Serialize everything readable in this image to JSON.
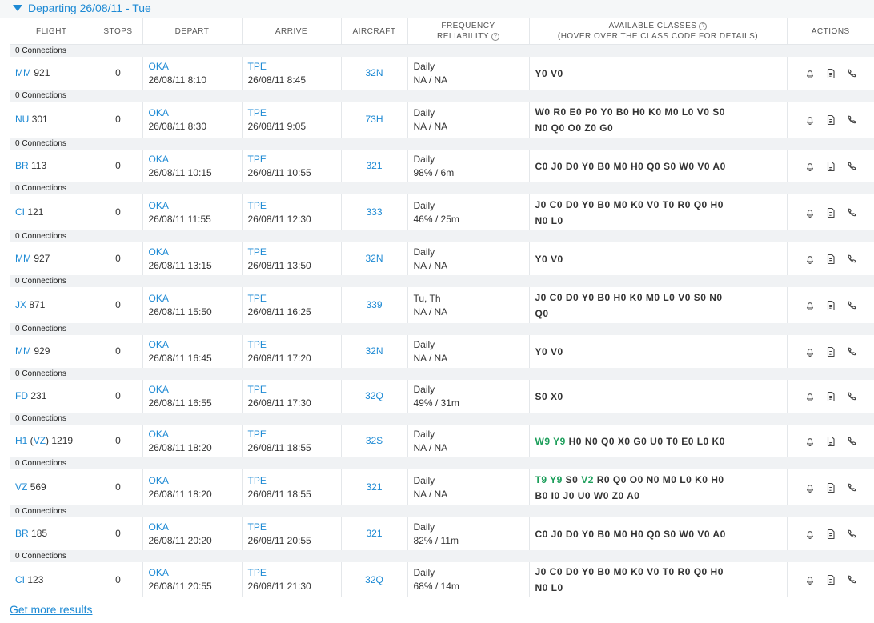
{
  "header": {
    "title": "Departing 26/08/11 - Tue"
  },
  "columns": {
    "flight": "FLIGHT",
    "stops": "STOPS",
    "depart": "DEPART",
    "arrive": "ARRIVE",
    "aircraft": "AIRCRAFT",
    "freq_line1": "FREQUENCY",
    "freq_line2": "RELIABILITY",
    "classes_line1": "AVAILABLE CLASSES",
    "classes_line2": "(HOVER OVER THE CLASS CODE FOR DETAILS)",
    "actions": "ACTIONS"
  },
  "flights": [
    {
      "connections": "0 Connections",
      "airline": "MM",
      "operator": "",
      "number": "921",
      "stops": "0",
      "dep_code": "OKA",
      "dep_time": "26/08/11 8:10",
      "arr_code": "TPE",
      "arr_time": "26/08/11 8:45",
      "aircraft": "32N",
      "frequency": "Daily",
      "reliability": "NA / NA",
      "classes_line1_hl": "",
      "classes_line1": "Y0 V0",
      "classes_line2": ""
    },
    {
      "connections": "0 Connections",
      "airline": "NU",
      "operator": "",
      "number": "301",
      "stops": "0",
      "dep_code": "OKA",
      "dep_time": "26/08/11 8:30",
      "arr_code": "TPE",
      "arr_time": "26/08/11 9:05",
      "aircraft": "73H",
      "frequency": "Daily",
      "reliability": "NA / NA",
      "classes_line1_hl": "",
      "classes_line1": "W0 R0 E0 P0 Y0 B0 H0 K0 M0 L0 V0 S0",
      "classes_line2": "N0 Q0 O0 Z0 G0"
    },
    {
      "connections": "0 Connections",
      "airline": "BR",
      "operator": "",
      "number": "113",
      "stops": "0",
      "dep_code": "OKA",
      "dep_time": "26/08/11 10:15",
      "arr_code": "TPE",
      "arr_time": "26/08/11 10:55",
      "aircraft": "321",
      "frequency": "Daily",
      "reliability": "98% / 6m",
      "classes_line1_hl": "",
      "classes_line1": "C0 J0 D0 Y0 B0 M0 H0 Q0 S0 W0 V0 A0",
      "classes_line2": ""
    },
    {
      "connections": "0 Connections",
      "airline": "CI",
      "operator": "",
      "number": "121",
      "stops": "0",
      "dep_code": "OKA",
      "dep_time": "26/08/11 11:55",
      "arr_code": "TPE",
      "arr_time": "26/08/11 12:30",
      "aircraft": "333",
      "frequency": "Daily",
      "reliability": "46% / 25m",
      "classes_line1_hl": "",
      "classes_line1": "J0 C0 D0 Y0 B0 M0 K0 V0 T0 R0 Q0 H0",
      "classes_line2": "N0 L0"
    },
    {
      "connections": "0 Connections",
      "airline": "MM",
      "operator": "",
      "number": "927",
      "stops": "0",
      "dep_code": "OKA",
      "dep_time": "26/08/11 13:15",
      "arr_code": "TPE",
      "arr_time": "26/08/11 13:50",
      "aircraft": "32N",
      "frequency": "Daily",
      "reliability": "NA / NA",
      "classes_line1_hl": "",
      "classes_line1": "Y0 V0",
      "classes_line2": ""
    },
    {
      "connections": "0 Connections",
      "airline": "JX",
      "operator": "",
      "number": "871",
      "stops": "0",
      "dep_code": "OKA",
      "dep_time": "26/08/11 15:50",
      "arr_code": "TPE",
      "arr_time": "26/08/11 16:25",
      "aircraft": "339",
      "frequency": "Tu, Th",
      "reliability": "NA / NA",
      "classes_line1_hl": "",
      "classes_line1": "J0 C0 D0 Y0 B0 H0 K0 M0 L0 V0 S0 N0",
      "classes_line2": "Q0"
    },
    {
      "connections": "0 Connections",
      "airline": "MM",
      "operator": "",
      "number": "929",
      "stops": "0",
      "dep_code": "OKA",
      "dep_time": "26/08/11 16:45",
      "arr_code": "TPE",
      "arr_time": "26/08/11 17:20",
      "aircraft": "32N",
      "frequency": "Daily",
      "reliability": "NA / NA",
      "classes_line1_hl": "",
      "classes_line1": "Y0 V0",
      "classes_line2": ""
    },
    {
      "connections": "0 Connections",
      "airline": "FD",
      "operator": "",
      "number": "231",
      "stops": "0",
      "dep_code": "OKA",
      "dep_time": "26/08/11 16:55",
      "arr_code": "TPE",
      "arr_time": "26/08/11 17:30",
      "aircraft": "32Q",
      "frequency": "Daily",
      "reliability": "49% / 31m",
      "classes_line1_hl": "",
      "classes_line1": "S0 X0",
      "classes_line2": ""
    },
    {
      "connections": "0 Connections",
      "airline": "H1",
      "operator": "VZ",
      "number": "1219",
      "stops": "0",
      "dep_code": "OKA",
      "dep_time": "26/08/11 18:20",
      "arr_code": "TPE",
      "arr_time": "26/08/11 18:55",
      "aircraft": "32S",
      "frequency": "Daily",
      "reliability": "NA / NA",
      "classes_line1_hl": "W9 Y9",
      "classes_line1": "H0 N0 Q0 X0 G0 U0 T0 E0 L0 K0",
      "classes_line2": ""
    },
    {
      "connections": "0 Connections",
      "airline": "VZ",
      "operator": "",
      "number": "569",
      "stops": "0",
      "dep_code": "OKA",
      "dep_time": "26/08/11 18:20",
      "arr_code": "TPE",
      "arr_time": "26/08/11 18:55",
      "aircraft": "321",
      "frequency": "Daily",
      "reliability": "NA / NA",
      "classes_line1_hl": "T9 Y9",
      "classes_line1": "S0",
      "classes_line1_hl2": "V2",
      "classes_line1_b": "R0 Q0 O0 N0 M0 L0 K0 H0",
      "classes_line2": "B0 I0 J0 U0 W0 Z0 A0"
    },
    {
      "connections": "0 Connections",
      "airline": "BR",
      "operator": "",
      "number": "185",
      "stops": "0",
      "dep_code": "OKA",
      "dep_time": "26/08/11 20:20",
      "arr_code": "TPE",
      "arr_time": "26/08/11 20:55",
      "aircraft": "321",
      "frequency": "Daily",
      "reliability": "82% / 11m",
      "classes_line1_hl": "",
      "classes_line1": "C0 J0 D0 Y0 B0 M0 H0 Q0 S0 W0 V0 A0",
      "classes_line2": ""
    },
    {
      "connections": "0 Connections",
      "airline": "CI",
      "operator": "",
      "number": "123",
      "stops": "0",
      "dep_code": "OKA",
      "dep_time": "26/08/11 20:55",
      "arr_code": "TPE",
      "arr_time": "26/08/11 21:30",
      "aircraft": "32Q",
      "frequency": "Daily",
      "reliability": "68% / 14m",
      "classes_line1_hl": "",
      "classes_line1": "J0 C0 D0 Y0 B0 M0 K0 V0 T0 R0 Q0 H0",
      "classes_line2": "N0 L0"
    }
  ],
  "footer": {
    "more_results": "Get more results"
  },
  "icons": {
    "alert": "bell-icon",
    "details": "document-icon",
    "call": "phone-icon"
  },
  "colors": {
    "link": "#1e8ad4",
    "available_class": "#1c9e5a"
  }
}
